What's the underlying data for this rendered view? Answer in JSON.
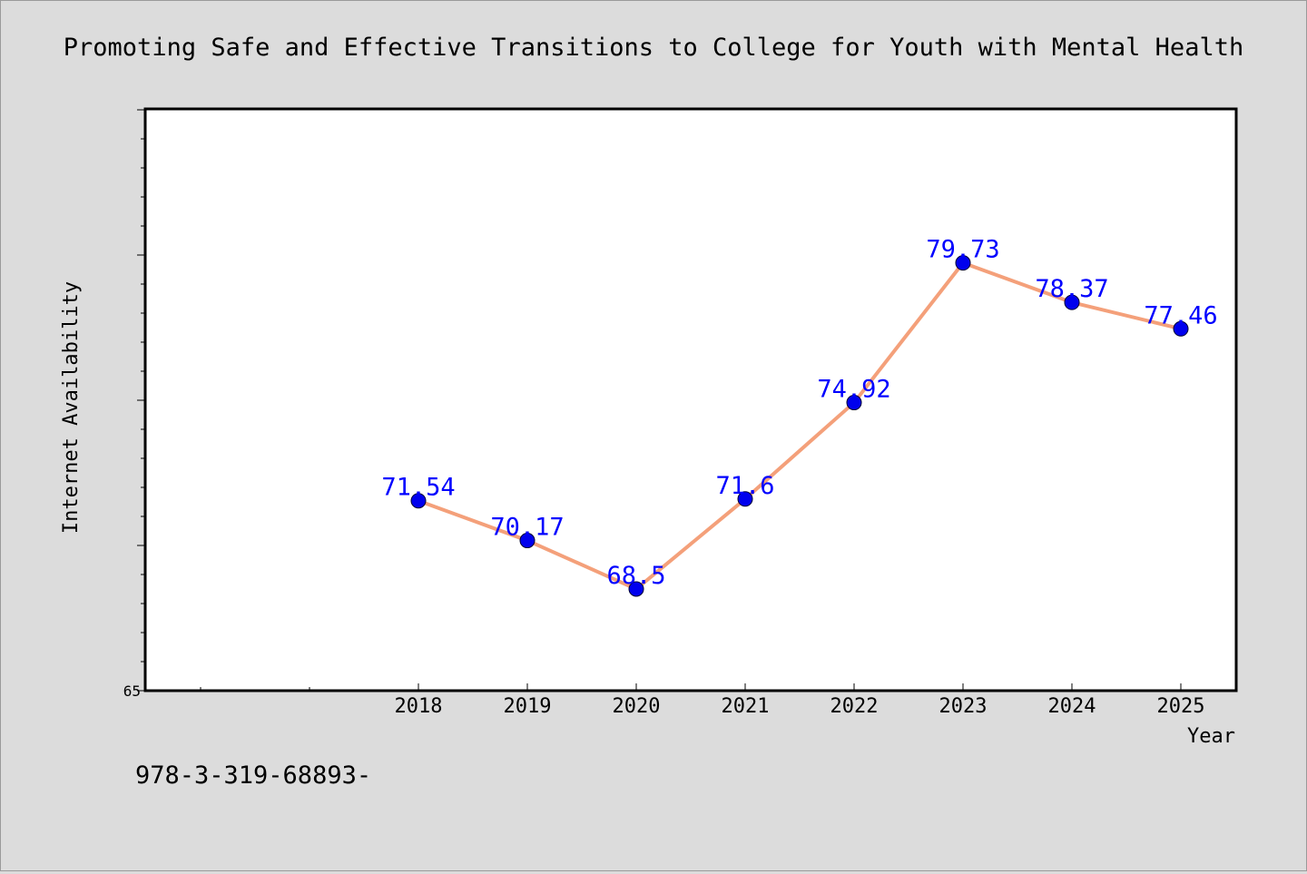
{
  "chart_data": {
    "type": "line",
    "title": "Promoting Safe and Effective Transitions to College for Youth with Mental Health",
    "xlabel": "Year",
    "ylabel": "Internet Availability",
    "categories": [
      "2018",
      "2019",
      "2020",
      "2021",
      "2022",
      "2023",
      "2024",
      "2025"
    ],
    "series": [
      {
        "values": [
          71.54,
          70.17,
          68.5,
          71.6,
          74.92,
          79.73,
          78.37,
          77.46
        ],
        "labels": [
          "71.54",
          "70.17",
          "68.5",
          "71.6",
          "74.92",
          "79.73",
          "78.37",
          "77.46"
        ]
      }
    ],
    "ylim": [
      65,
      85
    ],
    "y_tick_labels": [
      "65"
    ],
    "grid": false,
    "legend": "none",
    "colors": {
      "line": "#f4a07a",
      "marker": "#0000ee",
      "data_label": "#0000ff",
      "plot_background": "#ffffff",
      "figure_background": "#dcdcdc"
    }
  },
  "footer": {
    "code": "978-3-319-68893-"
  }
}
